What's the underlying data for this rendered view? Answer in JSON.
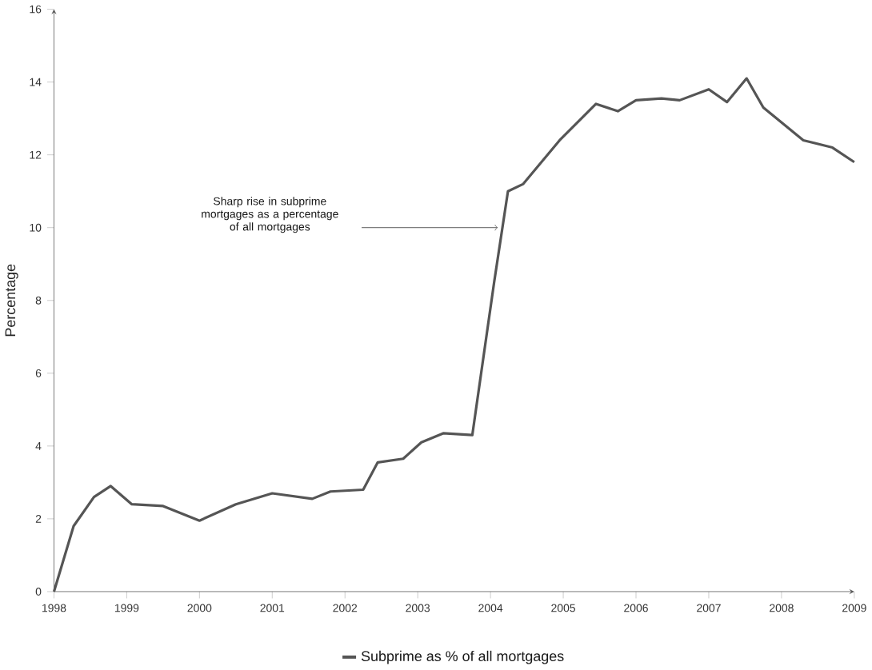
{
  "chart_data": {
    "type": "line",
    "ylabel": "Percentage",
    "legend": "bottom",
    "grid": false,
    "marker": "none",
    "line_style": "solid",
    "xlim": [
      1998,
      2009
    ],
    "ylim": [
      0,
      16
    ],
    "xticks": [
      1998,
      1999,
      2000,
      2001,
      2002,
      2003,
      2004,
      2005,
      2006,
      2007,
      2008,
      2009
    ],
    "yticks": [
      0,
      2,
      4,
      6,
      8,
      10,
      12,
      14,
      16
    ],
    "annotations": [
      "Sharp rise in subprime mortgages as a percentage of all mortgages"
    ],
    "series": [
      {
        "name": "Subprime as % of all mortgages",
        "color": "#555555",
        "x": [
          1998,
          1998.27,
          1998.55,
          1998.78,
          1999.07,
          1999.5,
          2000.0,
          2000.5,
          2001.0,
          2001.55,
          2001.8,
          2002.25,
          2002.45,
          2002.8,
          2003.05,
          2003.35,
          2003.75,
          2004.05,
          2004.24,
          2004.45,
          2004.95,
          2005.45,
          2005.75,
          2006.0,
          2006.35,
          2006.6,
          2007.0,
          2007.25,
          2007.52,
          2007.75,
          2008.3,
          2008.7,
          2009.0
        ],
        "values": [
          0,
          1.8,
          2.6,
          2.9,
          2.4,
          2.35,
          1.95,
          2.4,
          2.7,
          2.55,
          2.75,
          2.8,
          3.55,
          3.65,
          4.1,
          4.35,
          4.3,
          8.5,
          11.0,
          11.2,
          12.4,
          13.4,
          13.2,
          13.5,
          13.55,
          13.5,
          13.8,
          13.45,
          14.1,
          13.3,
          12.4,
          12.2,
          11.8
        ]
      }
    ]
  }
}
